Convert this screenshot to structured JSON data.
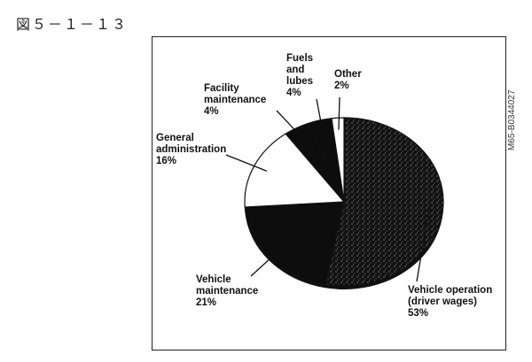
{
  "figure_label": "図５－１－１３",
  "side_code": "M65-B0344027",
  "chart_data": {
    "type": "pie",
    "title": "",
    "slices": [
      {
        "label_lines": [
          "Vehicle operation",
          "(driver wages)"
        ],
        "pct_label": "53%",
        "value": 53,
        "color": "#0d0d0d",
        "speckled": true
      },
      {
        "label_lines": [
          "Vehicle",
          "maintenance"
        ],
        "pct_label": "21%",
        "value": 21,
        "color": "#0d0d0d",
        "speckled": false
      },
      {
        "label_lines": [
          "General",
          "administration"
        ],
        "pct_label": "16%",
        "value": 16,
        "color": "#ffffff",
        "speckled": false
      },
      {
        "label_lines": [
          "Facility",
          "maintenance"
        ],
        "pct_label": "4%",
        "value": 4,
        "color": "#0d0d0d",
        "speckled": false
      },
      {
        "label_lines": [
          "Fuels",
          "and",
          "lubes"
        ],
        "pct_label": "4%",
        "value": 4,
        "color": "#0d0d0d",
        "speckled": false
      },
      {
        "label_lines": [
          "Other"
        ],
        "pct_label": "2%",
        "value": 2,
        "color": "#ffffff",
        "speckled": false
      }
    ]
  }
}
